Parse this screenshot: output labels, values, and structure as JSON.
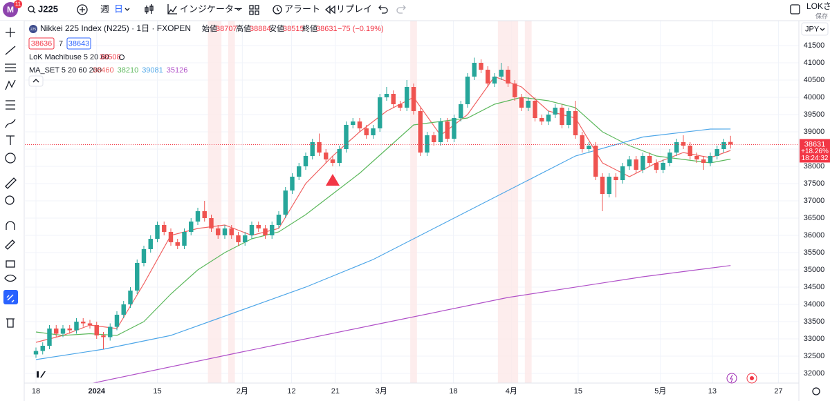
{
  "toolbar": {
    "badge": "M",
    "badge_count": "11",
    "symbol": "J225",
    "week": "週",
    "day": "日",
    "indicators": "インジケーター",
    "alert": "アラート",
    "replay": "リプレイ",
    "user": "LOKさん",
    "save": "保存"
  },
  "legend": {
    "open_label": "始値",
    "high_label": "高値",
    "low_label": "安値",
    "close_label": "終値",
    "change": "−75 (−0.19%)",
    "bid": 38636,
    "spread": 7,
    "ask": 38643,
    "lok_name": "LoK Machibuse 5 20 60",
    "lok_value": 38508,
    "ma_name": "MA_SET 5 20 60 200",
    "currency": "JPY",
    "symbol_icon": "225"
  },
  "chart_data": {
    "type": "candlestick",
    "title": "Nikkei 225 Index (N225) · 1日 · FXOPEN",
    "up_color": "#26a69a",
    "down_color": "#ef5350",
    "open": [
      32550,
      32650,
      32800,
      33300,
      33150,
      33300,
      33250,
      33500,
      33450,
      33400,
      33100,
      33050,
      33350,
      33700,
      34000,
      34400,
      35200,
      35600,
      35900,
      36300,
      36100,
      35800,
      35700,
      36100,
      36400,
      36700,
      36500,
      36200,
      36000,
      36200,
      36000,
      35800,
      36000,
      36300,
      36200,
      36000,
      36300,
      36600,
      37300,
      37700,
      38000,
      38300,
      38700,
      38400,
      38200,
      38100,
      38500,
      39200,
      39300,
      39100,
      38900,
      39100,
      40000,
      40100,
      39800,
      39700,
      40300,
      39600,
      38400,
      38900,
      38700,
      39300,
      38800,
      39400,
      39800,
      40600,
      41000,
      40800,
      40400,
      40600,
      40800,
      40400,
      40000,
      39700,
      39900,
      39400,
      39300,
      39500,
      39700,
      39200,
      39600,
      38900,
      38500,
      38600,
      37700,
      37200,
      37700,
      37600,
      38000,
      38200,
      37900,
      38300,
      38100,
      37900,
      38100,
      38400,
      38700,
      38600,
      38300,
      38200,
      38100,
      38300,
      38500,
      38707
    ],
    "high": [
      32750,
      32900,
      33400,
      33400,
      33400,
      33400,
      33600,
      33600,
      33550,
      33500,
      33200,
      33450,
      33800,
      34100,
      34500,
      35300,
      35700,
      36000,
      36400,
      36400,
      36200,
      35900,
      36200,
      36500,
      36800,
      37000,
      36600,
      36300,
      36300,
      36300,
      36100,
      36100,
      36400,
      36400,
      36300,
      36400,
      36700,
      37400,
      37800,
      38100,
      38400,
      38800,
      38950,
      38500,
      38300,
      38600,
      39300,
      39400,
      39400,
      39200,
      39200,
      40100,
      40300,
      40200,
      39900,
      40500,
      40400,
      39700,
      39000,
      39000,
      39400,
      39400,
      39500,
      39900,
      40700,
      41150,
      41100,
      40900,
      40700,
      41000,
      40900,
      40500,
      40100,
      40000,
      40000,
      39500,
      39600,
      39800,
      39800,
      39700,
      39900,
      39000,
      38700,
      38700,
      37800,
      37800,
      37800,
      38100,
      38300,
      38300,
      38400,
      38400,
      38200,
      38200,
      38500,
      38800,
      38900,
      38700,
      38400,
      38300,
      38400,
      38600,
      38800,
      38884
    ],
    "low": [
      32450,
      32550,
      32700,
      33050,
      33050,
      33150,
      33150,
      33350,
      33300,
      33000,
      32700,
      32950,
      33250,
      33600,
      33900,
      34300,
      35100,
      35500,
      35800,
      36000,
      35700,
      35600,
      35600,
      36000,
      36300,
      36400,
      36100,
      35900,
      35900,
      35900,
      35700,
      35700,
      35900,
      36100,
      35900,
      35900,
      36200,
      36500,
      37200,
      37600,
      37900,
      38200,
      38300,
      38100,
      38000,
      38000,
      38400,
      39100,
      39000,
      38800,
      38800,
      39000,
      39900,
      39700,
      39600,
      39600,
      39500,
      38300,
      38300,
      38600,
      38600,
      38700,
      38700,
      39300,
      39700,
      40500,
      40700,
      40300,
      40300,
      40500,
      40300,
      39900,
      39600,
      39600,
      39300,
      39200,
      39200,
      39400,
      39100,
      39100,
      38800,
      38400,
      38400,
      37600,
      36700,
      37100,
      37100,
      37500,
      37900,
      37800,
      37800,
      38000,
      37800,
      37800,
      38000,
      38300,
      38500,
      38200,
      38100,
      37900,
      38000,
      38200,
      38400,
      38515
    ],
    "close": [
      32650,
      32800,
      33300,
      33150,
      33300,
      33250,
      33500,
      33450,
      33400,
      33100,
      33050,
      33350,
      33700,
      34000,
      34400,
      35200,
      35600,
      35900,
      36300,
      36100,
      35800,
      35700,
      36100,
      36400,
      36700,
      36500,
      36200,
      36000,
      36200,
      36000,
      35800,
      36000,
      36300,
      36200,
      36000,
      36300,
      36600,
      37300,
      37700,
      38000,
      38300,
      38700,
      38400,
      38200,
      38100,
      38500,
      39200,
      39300,
      39100,
      38900,
      39100,
      40000,
      40100,
      39800,
      39700,
      40300,
      39600,
      38400,
      38900,
      38700,
      39300,
      38800,
      39400,
      39800,
      40600,
      41000,
      40800,
      40400,
      40600,
      40800,
      40400,
      40000,
      39700,
      39900,
      39400,
      39300,
      39500,
      39700,
      39200,
      39600,
      38900,
      38500,
      38600,
      37700,
      37200,
      37700,
      37600,
      38000,
      38200,
      37900,
      38300,
      38100,
      37900,
      38100,
      38400,
      38700,
      38600,
      38300,
      38200,
      38100,
      38300,
      38500,
      38700,
      38631
    ],
    "series": [
      {
        "color": "#f06060",
        "x": [
          0,
          4,
          8,
          12,
          16,
          20,
          24,
          28,
          32,
          36,
          40,
          44,
          48,
          52,
          56,
          60,
          64,
          68,
          72,
          76,
          80,
          84,
          88,
          92,
          96,
          100,
          103
        ],
        "values": [
          32900,
          33100,
          33400,
          33300,
          34600,
          36000,
          36200,
          36300,
          36000,
          36200,
          37500,
          38300,
          39000,
          39600,
          40000,
          38900,
          39500,
          40600,
          40300,
          39600,
          39400,
          38100,
          37700,
          38100,
          38400,
          38250,
          38460
        ]
      },
      {
        "color": "#5cb85c",
        "x": [
          0,
          4,
          8,
          12,
          16,
          20,
          24,
          28,
          32,
          36,
          40,
          44,
          48,
          52,
          56,
          60,
          64,
          68,
          72,
          76,
          80,
          84,
          88,
          92,
          96,
          100,
          103
        ],
        "values": [
          33200,
          33100,
          33150,
          33100,
          33500,
          34300,
          35000,
          35500,
          35900,
          36100,
          36600,
          37200,
          37800,
          38500,
          39200,
          39300,
          39400,
          39800,
          40000,
          39900,
          39700,
          39000,
          38600,
          38300,
          38200,
          38100,
          38210
        ]
      },
      {
        "color": "#4da6e8",
        "x": [
          0,
          10,
          20,
          30,
          40,
          50,
          60,
          70,
          80,
          90,
          100,
          103
        ],
        "values": [
          32400,
          32700,
          33100,
          33800,
          34500,
          35300,
          36300,
          37300,
          38300,
          38850,
          39080,
          39081
        ]
      },
      {
        "color": "#b050c8",
        "x": [
          8,
          30,
          50,
          70,
          90,
          103
        ],
        "values": [
          31700,
          32600,
          33400,
          34200,
          34800,
          35126
        ]
      }
    ],
    "highlights": [
      [
        26,
        27
      ],
      [
        29,
        29
      ],
      [
        56,
        56
      ],
      [
        69,
        71
      ],
      [
        73,
        73
      ]
    ],
    "signal": {
      "x": 44,
      "value": 37600
    },
    "price_change": "+18.26%",
    "countdown": "18:24:32",
    "xlim": [
      -1.64,
      113.13
    ],
    "xticks": [
      {
        "value": 0,
        "label": "18"
      },
      {
        "value": 9,
        "label": "2024"
      },
      {
        "value": 18,
        "label": "15"
      },
      {
        "value": 30.6,
        "label": "2月"
      },
      {
        "value": 37.9,
        "label": "12"
      },
      {
        "value": 44.4,
        "label": "21"
      },
      {
        "value": 51.2,
        "label": "3月"
      },
      {
        "value": 61.9,
        "label": "18"
      },
      {
        "value": 70.5,
        "label": "4月"
      },
      {
        "value": 80.4,
        "label": "15"
      },
      {
        "value": 92.6,
        "label": "5月"
      },
      {
        "value": 100.3,
        "label": "13"
      },
      {
        "value": 110.1,
        "label": "27"
      }
    ],
    "ylim": [
      31720,
      42220
    ],
    "yticks": [
      32000,
      32500,
      33000,
      33500,
      34000,
      34500,
      35000,
      35500,
      36000,
      36500,
      37000,
      37500,
      38000,
      38500,
      39000,
      39500,
      40000,
      40500,
      41000,
      41500
    ]
  }
}
